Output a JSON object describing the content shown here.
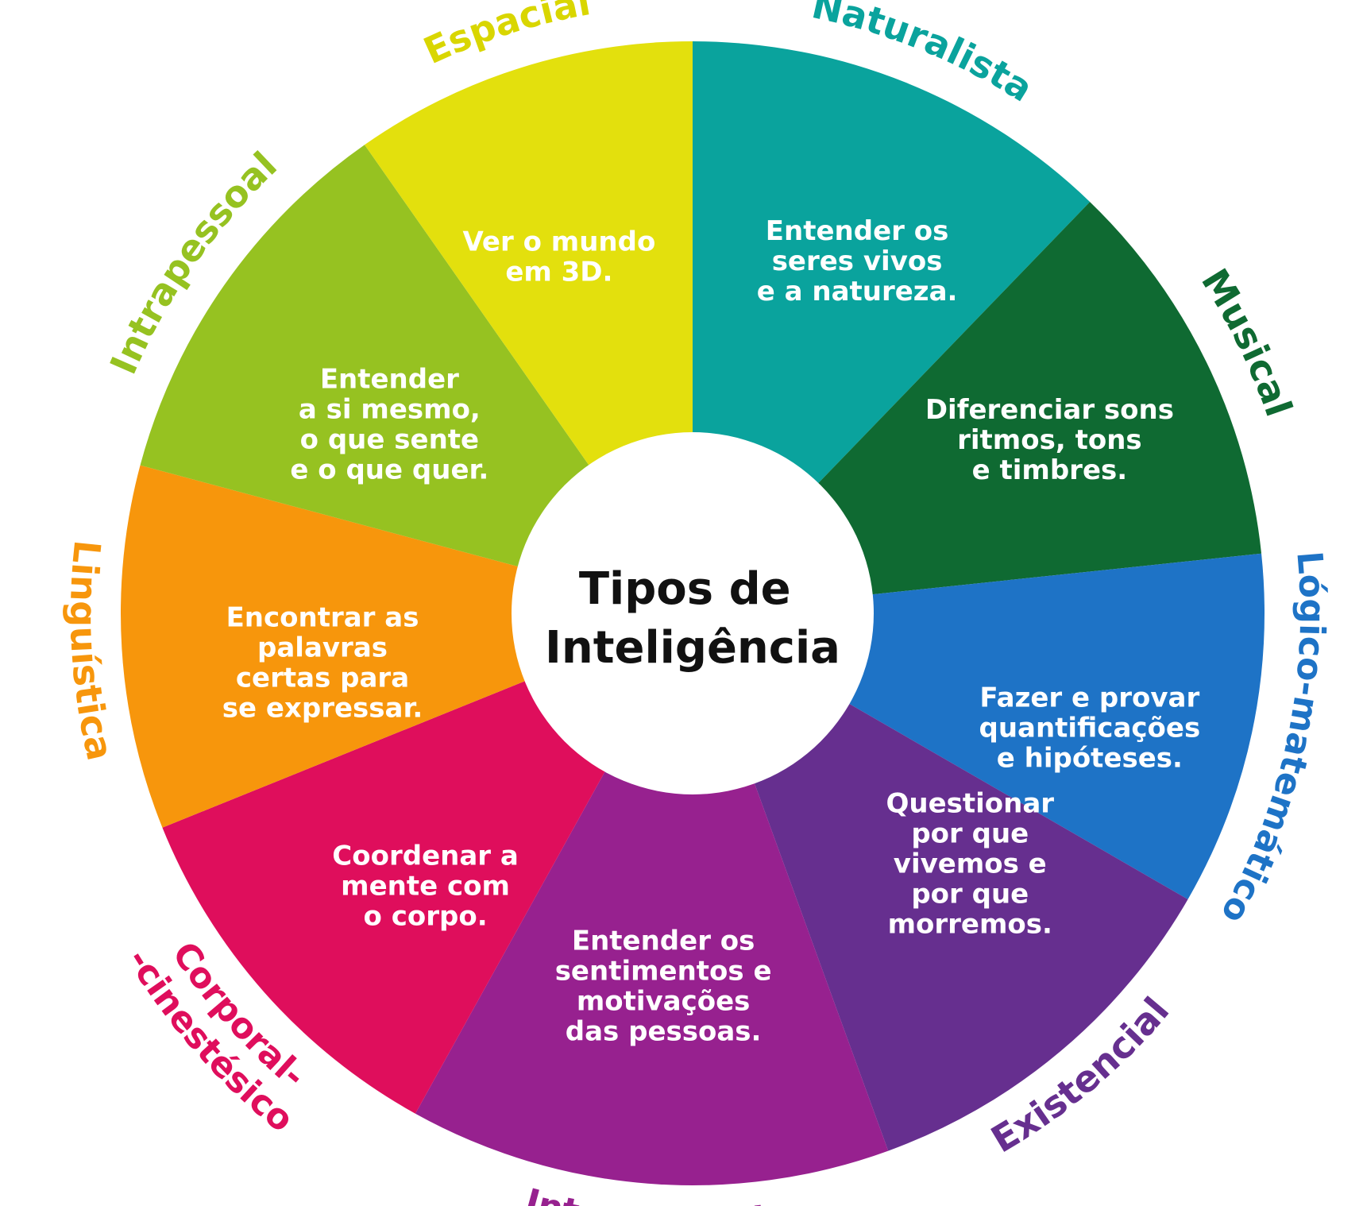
{
  "center": {
    "title_lines": [
      "Tipos de",
      "Inteligência"
    ]
  },
  "segments": [
    {
      "id": "naturalista",
      "label": "Naturalista",
      "label_lines": [
        "Naturalista"
      ],
      "color": "#0aa39d",
      "text_lines": [
        "Entender os",
        "seres vivos",
        "e a natureza."
      ]
    },
    {
      "id": "musical",
      "label": "Musical",
      "label_lines": [
        "Musical"
      ],
      "color": "#0f6a32",
      "text_lines": [
        "Diferenciar sons",
        "ritmos, tons",
        "e timbres."
      ]
    },
    {
      "id": "logico-matematico",
      "label": "Lógico-matemático",
      "label_lines": [
        "Lógico-matemático"
      ],
      "color": "#1e73c6",
      "text_lines": [
        "Fazer e provar",
        "quantificações",
        "e hipóteses."
      ]
    },
    {
      "id": "existencial",
      "label": "Existencial",
      "label_lines": [
        "Existencial"
      ],
      "color": "#662f8f",
      "text_lines": [
        "Questionar",
        "por que",
        "vivemos e",
        "por que",
        "morremos."
      ]
    },
    {
      "id": "interpessoal",
      "label": "Interpessoal",
      "label_lines": [
        "Interpessoal"
      ],
      "color": "#97218f",
      "text_lines": [
        "Entender os",
        "sentimentos e",
        "motivações",
        "das pessoas."
      ]
    },
    {
      "id": "corporal-cinestesico",
      "label": "Corporal- -cinestésico",
      "label_lines": [
        "Corporal-",
        "-cinestésico"
      ],
      "color": "#df0e5c",
      "text_lines": [
        "Coordenar a",
        "mente com",
        "o corpo."
      ]
    },
    {
      "id": "linguistica",
      "label": "Linguística",
      "label_lines": [
        "Linguística"
      ],
      "color": "#f7960c",
      "text_lines": [
        "Encontrar as",
        "palavras",
        "certas para",
        "se expressar."
      ]
    },
    {
      "id": "intrapessoal",
      "label": "Intrapessoal",
      "label_lines": [
        "Intrapessoal"
      ],
      "color": "#96c221",
      "text_lines": [
        "Entender",
        "a si mesmo,",
        "o que sente",
        "e o que quer."
      ]
    },
    {
      "id": "espacial",
      "label": "Espacial",
      "label_lines": [
        "Espacial"
      ],
      "color": "#e3e00d",
      "text_lines": [
        "Ver o mundo",
        "em 3D."
      ]
    }
  ]
}
